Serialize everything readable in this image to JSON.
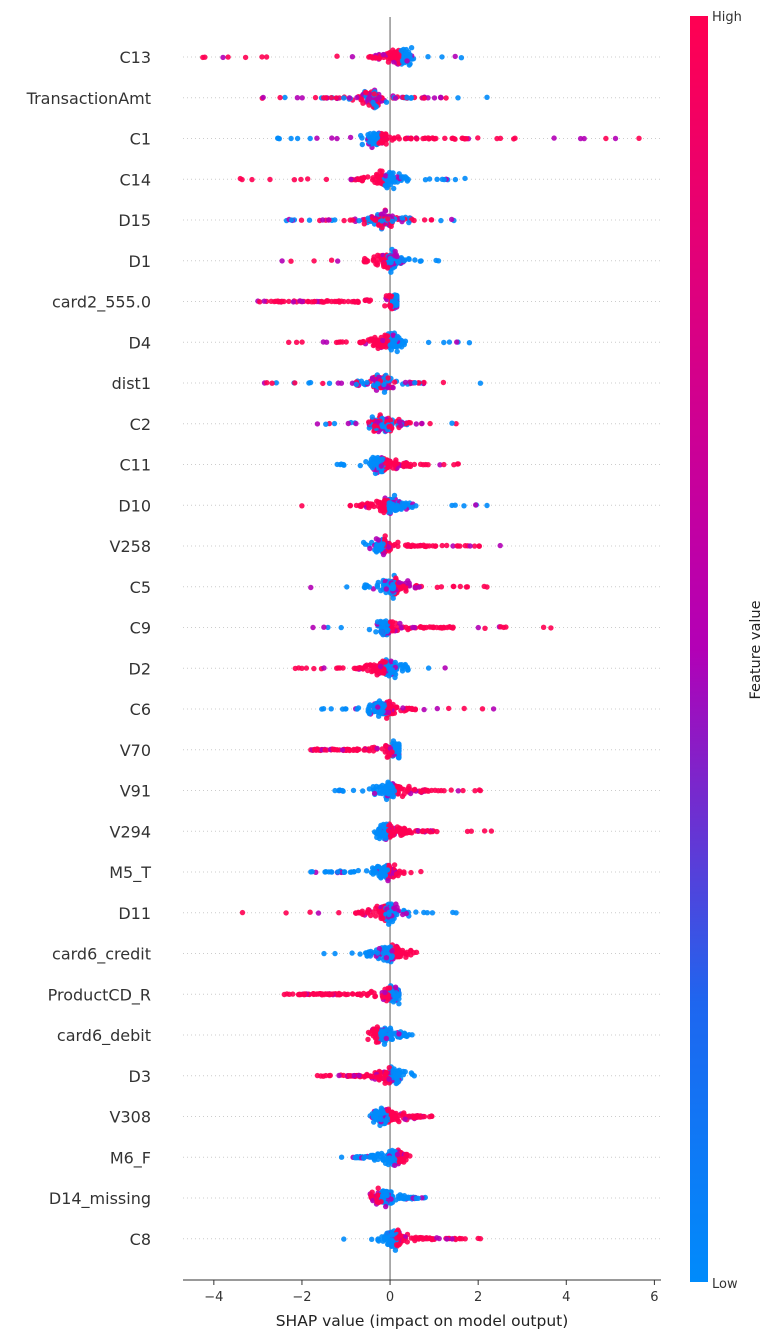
{
  "chart_data": {
    "type": "scatter",
    "subtype": "shap-beeswarm",
    "title": "",
    "xlabel": "SHAP value (impact on model output)",
    "ylabel": "",
    "xlim": [
      -4.7,
      6.15
    ],
    "xticks": [
      -4,
      -2,
      0,
      2,
      4,
      6
    ],
    "grid": false,
    "colorbar": {
      "title": "Feature value",
      "high_label": "High",
      "low_label": "Low",
      "high_color": "#ff0052",
      "low_color": "#008bfb",
      "mid_color": "#b300b6"
    },
    "features": [
      {
        "name": "C13",
        "min": -4.25,
        "max": 1.62,
        "core": [
          -0.5,
          0.35
        ],
        "peak": 0.28,
        "redSide": "neg"
      },
      {
        "name": "TransactionAmt",
        "min": -2.9,
        "max": 2.2,
        "core": [
          -1.6,
          0.9
        ],
        "peak": -0.4,
        "redSide": "mixed"
      },
      {
        "name": "C1",
        "min": -2.55,
        "max": 5.65,
        "core": [
          -0.7,
          1.8
        ],
        "peak": -0.3,
        "redSide": "pos"
      },
      {
        "name": "C14",
        "min": -3.4,
        "max": 1.7,
        "core": [
          -0.9,
          0.5
        ],
        "peak": -0.1,
        "redSide": "neg"
      },
      {
        "name": "D15",
        "min": -2.35,
        "max": 1.45,
        "core": [
          -0.8,
          0.5
        ],
        "peak": -0.1,
        "redSide": "mixed"
      },
      {
        "name": "D1",
        "min": -2.45,
        "max": 1.1,
        "core": [
          -0.6,
          0.4
        ],
        "peak": 0.0,
        "redSide": "neg"
      },
      {
        "name": "card2_555.0",
        "min": -3.0,
        "max": 0.15,
        "core": [
          -3.0,
          -0.5
        ],
        "peak": 0.1,
        "redSide": "neg"
      },
      {
        "name": "D4",
        "min": -2.3,
        "max": 1.8,
        "core": [
          -0.7,
          0.4
        ],
        "peak": 0.0,
        "redSide": "neg"
      },
      {
        "name": "dist1",
        "min": -2.85,
        "max": 2.05,
        "core": [
          -0.8,
          0.8
        ],
        "peak": -0.2,
        "redSide": "mixed"
      },
      {
        "name": "C2",
        "min": -1.65,
        "max": 1.5,
        "core": [
          -0.5,
          0.5
        ],
        "peak": -0.2,
        "redSide": "mixed"
      },
      {
        "name": "C11",
        "min": -1.2,
        "max": 1.55,
        "core": [
          -0.4,
          0.5
        ],
        "peak": -0.2,
        "redSide": "pos"
      },
      {
        "name": "D10",
        "min": -2.0,
        "max": 2.2,
        "core": [
          -0.7,
          0.6
        ],
        "peak": 0.0,
        "redSide": "neg"
      },
      {
        "name": "V258",
        "min": -0.6,
        "max": 2.5,
        "core": [
          -0.3,
          0.9
        ],
        "peak": -0.2,
        "redSide": "pos"
      },
      {
        "name": "C5",
        "min": -1.8,
        "max": 2.2,
        "core": [
          -0.6,
          0.8
        ],
        "peak": 0.05,
        "redSide": "pos"
      },
      {
        "name": "C9",
        "min": -1.75,
        "max": 3.65,
        "core": [
          -0.5,
          1.4
        ],
        "peak": -0.1,
        "redSide": "pos"
      },
      {
        "name": "D2",
        "min": -2.15,
        "max": 1.25,
        "core": [
          -0.8,
          0.5
        ],
        "peak": -0.05,
        "redSide": "neg"
      },
      {
        "name": "C6",
        "min": -1.55,
        "max": 2.35,
        "core": [
          -0.5,
          0.6
        ],
        "peak": -0.15,
        "redSide": "pos"
      },
      {
        "name": "V70",
        "min": -1.8,
        "max": 0.2,
        "core": [
          -1.8,
          -0.3
        ],
        "peak": 0.1,
        "redSide": "neg"
      },
      {
        "name": "V91",
        "min": -1.25,
        "max": 2.05,
        "core": [
          -0.4,
          1.0
        ],
        "peak": 0.05,
        "redSide": "pos"
      },
      {
        "name": "V294",
        "min": -0.35,
        "max": 2.3,
        "core": [
          -0.2,
          1.0
        ],
        "peak": -0.1,
        "redSide": "pos"
      },
      {
        "name": "M5_T",
        "min": -1.8,
        "max": 0.7,
        "core": [
          -1.4,
          0.3
        ],
        "peak": -0.1,
        "redSide": "pos"
      },
      {
        "name": "D11",
        "min": -3.35,
        "max": 1.5,
        "core": [
          -0.8,
          0.5
        ],
        "peak": -0.05,
        "redSide": "neg"
      },
      {
        "name": "card6_credit",
        "min": -1.5,
        "max": 0.6,
        "core": [
          -0.7,
          0.5
        ],
        "peak": 0.0,
        "redSide": "pos"
      },
      {
        "name": "ProductCD_R",
        "min": -2.4,
        "max": 0.2,
        "core": [
          -2.1,
          -0.2
        ],
        "peak": 0.05,
        "redSide": "neg"
      },
      {
        "name": "card6_debit",
        "min": -0.5,
        "max": 0.5,
        "core": [
          -0.3,
          0.4
        ],
        "peak": -0.2,
        "redSide": "neg"
      },
      {
        "name": "D3",
        "min": -1.65,
        "max": 0.55,
        "core": [
          -1.0,
          0.4
        ],
        "peak": 0.05,
        "redSide": "neg"
      },
      {
        "name": "V308",
        "min": -0.45,
        "max": 0.95,
        "core": [
          -0.4,
          0.8
        ],
        "peak": -0.1,
        "redSide": "pos"
      },
      {
        "name": "M6_F",
        "min": -1.1,
        "max": 0.45,
        "core": [
          -0.8,
          0.4
        ],
        "peak": 0.1,
        "redSide": "pos"
      },
      {
        "name": "D14_missing",
        "min": -0.45,
        "max": 0.8,
        "core": [
          -0.45,
          0.7
        ],
        "peak": -0.15,
        "redSide": "neg"
      },
      {
        "name": "C8",
        "min": -1.05,
        "max": 2.05,
        "core": [
          -0.3,
          1.6
        ],
        "peak": 0.1,
        "redSide": "pos"
      }
    ]
  }
}
